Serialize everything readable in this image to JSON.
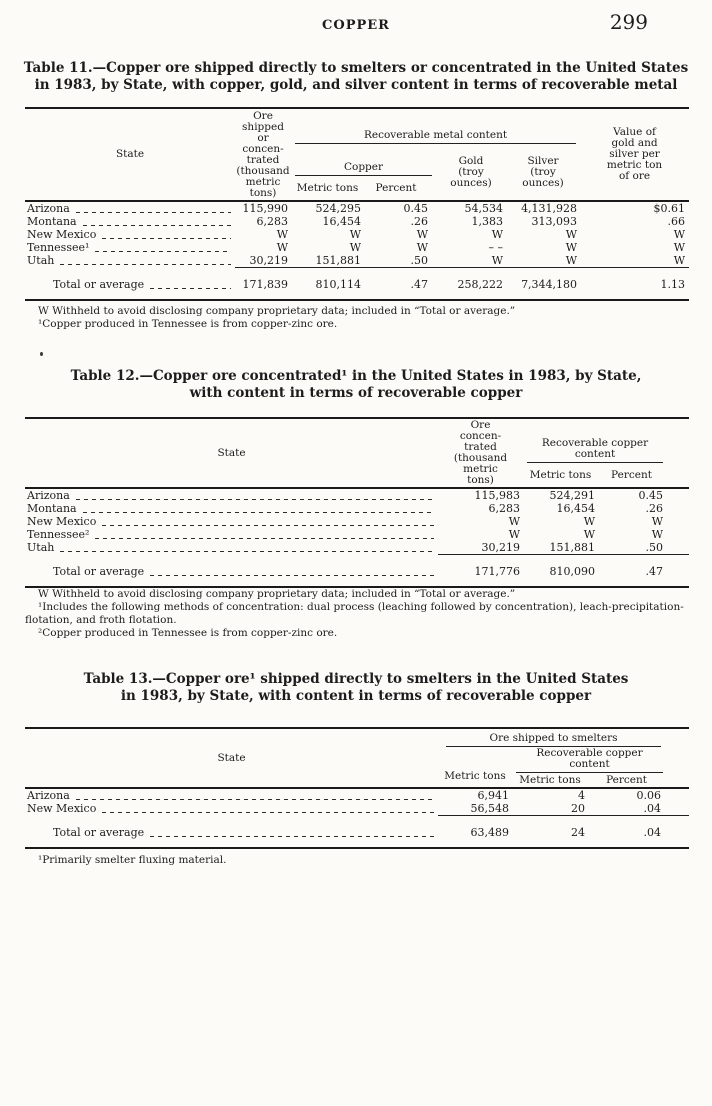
{
  "page": {
    "running_head": "COPPER",
    "page_number": "299"
  },
  "tables": [
    {
      "title_line1": "Table 11.—Copper ore shipped directly to smelters or concentrated in the United States",
      "title_line2": "in 1983, by State, with copper, gold, and silver content in terms of recoverable metal",
      "headers": {
        "state": "State",
        "ore": "Ore\nshipped\nor\nconcen-\ntrated\n(thousand\nmetric\ntons)",
        "group": "Recoverable metal content",
        "copper_group": "Copper",
        "metric_tons": "Metric tons",
        "percent": "Percent",
        "gold": "Gold\n(troy\nounces)",
        "silver": "Silver\n(troy\nounces)",
        "value": "Value of\ngold and\nsilver per\nmetric ton\nof ore"
      },
      "rows": [
        [
          "Arizona",
          "115,990",
          "524,295",
          "0.45",
          "54,534",
          "4,131,928",
          "$0.61"
        ],
        [
          "Montana",
          "6,283",
          "16,454",
          ".26",
          "1,383",
          "313,093",
          ".66"
        ],
        [
          "New Mexico",
          "W",
          "W",
          "W",
          "W",
          "W",
          "W"
        ],
        [
          "Tennessee¹",
          "W",
          "W",
          "W",
          "– –",
          "W",
          "W"
        ],
        [
          "Utah",
          "30,219",
          "151,881",
          ".50",
          "W",
          "W",
          "W"
        ]
      ],
      "total": [
        "Total or average",
        "171,839",
        "810,114",
        ".47",
        "258,222",
        "7,344,180",
        "1.13"
      ],
      "footnotes": [
        "W Withheld to avoid disclosing company proprietary data; included in “Total or average.”",
        "¹Copper produced in Tennessee is from copper-zinc ore."
      ]
    },
    {
      "title_line1": "Table 12.—Copper ore concentrated¹ in the United States in 1983, by State,",
      "title_line2": "with content in terms of recoverable copper",
      "headers": {
        "state": "State",
        "ore": "Ore\nconcen-\ntrated\n(thousand\nmetric\ntons)",
        "group": "Recoverable copper\ncontent",
        "metric_tons": "Metric tons",
        "percent": "Percent"
      },
      "rows": [
        [
          "Arizona",
          "115,983",
          "524,291",
          "0.45"
        ],
        [
          "Montana",
          "6,283",
          "16,454",
          ".26"
        ],
        [
          "New Mexico",
          "W",
          "W",
          "W"
        ],
        [
          "Tennessee²",
          "W",
          "W",
          "W"
        ],
        [
          "Utah",
          "30,219",
          "151,881",
          ".50"
        ]
      ],
      "total": [
        "Total or average",
        "171,776",
        "810,090",
        ".47"
      ],
      "footnotes": [
        "W Withheld to avoid disclosing company proprietary data; included in “Total or average.”",
        "¹Includes the following methods of concentration: dual process (leaching followed by concentration), leach-precipitation-flotation, and froth flotation.",
        "²Copper produced in Tennessee is from copper-zinc ore."
      ]
    },
    {
      "title_line1": "Table 13.—Copper ore¹ shipped directly to smelters in the United States",
      "title_line2": "in 1983, by State, with content in terms of recoverable copper",
      "headers": {
        "state": "State",
        "group": "Ore shipped to smelters",
        "ore_metric_tons": "Metric tons",
        "subgroup": "Recoverable copper\ncontent",
        "metric_tons": "Metric tons",
        "percent": "Percent"
      },
      "rows": [
        [
          "Arizona",
          "6,941",
          "4",
          "0.06"
        ],
        [
          "New Mexico",
          "56,548",
          "20",
          ".04"
        ]
      ],
      "total": [
        "Total or average",
        "63,489",
        "24",
        ".04"
      ],
      "footnotes": [
        "¹Primarily smelter fluxing material."
      ]
    }
  ]
}
